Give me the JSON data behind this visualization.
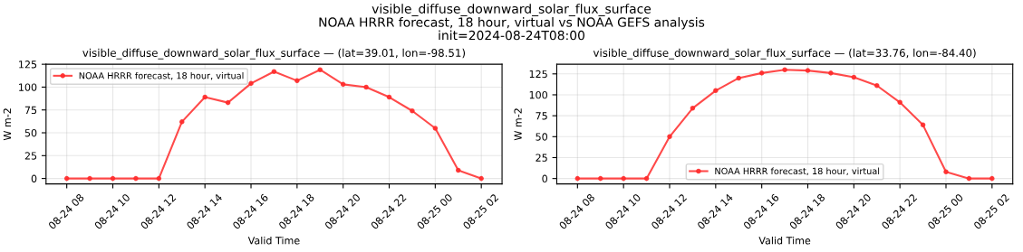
{
  "chart_data": [
    {
      "type": "line",
      "title": "visible_diffuse_downward_solar_flux_surface — (lat=39.01, lon=-98.51)",
      "annotations": [
        "visible_diffuse_downward_solar_flux_surface\nNOAA HRRR forecast, 18 hour, virtual vs NOAA GEFS analysis\ninit=2024-08-24T08:00"
      ],
      "xlabel": "Valid Time",
      "ylabel": "W m-2",
      "x": [
        "2024-08-24T08:00",
        "2024-08-24T09:00",
        "2024-08-24T10:00",
        "2024-08-24T11:00",
        "2024-08-24T12:00",
        "2024-08-24T13:00",
        "2024-08-24T14:00",
        "2024-08-24T15:00",
        "2024-08-24T16:00",
        "2024-08-24T17:00",
        "2024-08-24T18:00",
        "2024-08-24T19:00",
        "2024-08-24T20:00",
        "2024-08-24T21:00",
        "2024-08-24T22:00",
        "2024-08-24T23:00",
        "2024-08-25T00:00",
        "2024-08-25T01:00",
        "2024-08-25T02:00"
      ],
      "series": [
        {
          "name": "NOAA HRRR forecast, 18 hour, virtual",
          "color": "#ff2a2a",
          "values": [
            0,
            0,
            0,
            0,
            0,
            62,
            89,
            83,
            104,
            117,
            107,
            119,
            103,
            100,
            89,
            74,
            55,
            9,
            0
          ]
        }
      ],
      "xlim": [
        "2024-08-24T07:06",
        "2024-08-25T02:54"
      ],
      "xticks": [
        {
          "value": "2024-08-24T08:00",
          "label": "08-24 08"
        },
        {
          "value": "2024-08-24T10:00",
          "label": "08-24 10"
        },
        {
          "value": "2024-08-24T12:00",
          "label": "08-24 12"
        },
        {
          "value": "2024-08-24T14:00",
          "label": "08-24 14"
        },
        {
          "value": "2024-08-24T16:00",
          "label": "08-24 16"
        },
        {
          "value": "2024-08-24T18:00",
          "label": "08-24 18"
        },
        {
          "value": "2024-08-24T20:00",
          "label": "08-24 20"
        },
        {
          "value": "2024-08-24T22:00",
          "label": "08-24 22"
        },
        {
          "value": "2024-08-25T00:00",
          "label": "08-25 00"
        },
        {
          "value": "2024-08-25T02:00",
          "label": "08-25 02"
        }
      ],
      "ylim": [
        -6,
        125
      ],
      "yticks": [
        0,
        25,
        50,
        75,
        100,
        125
      ],
      "grid": true,
      "legend": "top left",
      "marker": "circle",
      "line_style": "solid"
    },
    {
      "type": "line",
      "title": "visible_diffuse_downward_solar_flux_surface — (lat=33.76, lon=-84.40)",
      "xlabel": "Valid Time",
      "ylabel": "W m-2",
      "x": [
        "2024-08-24T08:00",
        "2024-08-24T09:00",
        "2024-08-24T10:00",
        "2024-08-24T11:00",
        "2024-08-24T12:00",
        "2024-08-24T13:00",
        "2024-08-24T14:00",
        "2024-08-24T15:00",
        "2024-08-24T16:00",
        "2024-08-24T17:00",
        "2024-08-24T18:00",
        "2024-08-24T19:00",
        "2024-08-24T20:00",
        "2024-08-24T21:00",
        "2024-08-24T22:00",
        "2024-08-24T23:00",
        "2024-08-25T00:00",
        "2024-08-25T01:00",
        "2024-08-25T02:00"
      ],
      "series": [
        {
          "name": "NOAA HRRR forecast, 18 hour, virtual",
          "color": "#ff2a2a",
          "values": [
            0,
            0,
            0,
            0,
            50,
            84,
            105,
            120,
            126,
            130,
            129,
            126,
            121,
            111,
            91,
            64,
            8,
            0,
            0
          ]
        }
      ],
      "xlim": [
        "2024-08-24T07:06",
        "2024-08-25T02:54"
      ],
      "xticks": [
        {
          "value": "2024-08-24T08:00",
          "label": "08-24 08"
        },
        {
          "value": "2024-08-24T10:00",
          "label": "08-24 10"
        },
        {
          "value": "2024-08-24T12:00",
          "label": "08-24 12"
        },
        {
          "value": "2024-08-24T14:00",
          "label": "08-24 14"
        },
        {
          "value": "2024-08-24T16:00",
          "label": "08-24 16"
        },
        {
          "value": "2024-08-24T18:00",
          "label": "08-24 18"
        },
        {
          "value": "2024-08-24T20:00",
          "label": "08-24 20"
        },
        {
          "value": "2024-08-24T22:00",
          "label": "08-24 22"
        },
        {
          "value": "2024-08-25T00:00",
          "label": "08-25 00"
        },
        {
          "value": "2024-08-25T02:00",
          "label": "08-25 02"
        }
      ],
      "ylim": [
        -6.5,
        136.5
      ],
      "yticks": [
        0,
        25,
        50,
        75,
        100,
        125
      ],
      "grid": true,
      "legend": "bottom",
      "marker": "circle",
      "line_style": "solid"
    }
  ]
}
